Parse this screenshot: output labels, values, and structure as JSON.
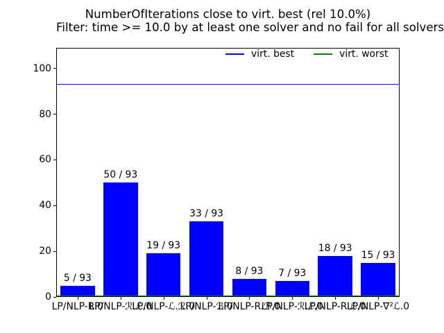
{
  "title": {
    "line1": "NumberOfIterations close to virt. best (rel 10.0%)",
    "line2": "Filter: time >= 10.0 by at least one solver and no fail for all solvers"
  },
  "legend": {
    "items": [
      {
        "label": "virt. best",
        "color": "#0000ff"
      },
      {
        "label": "virt. worst",
        "color": "#008000"
      }
    ],
    "position": "upper right inside plot, horizontal, no frame"
  },
  "chart_data": {
    "type": "bar",
    "title": "NumberOfIterations close to virt. best (rel 10.0%)",
    "subtitle": "Filter: time >= 10.0 by at least one solver and no fail for all solvers",
    "categories": [
      "LP/NLP-R.0",
      "LP/NLP-ℛ.ℒ.0",
      "LP/NLP-ℒ.ℛ.0",
      "LP/NLP-ℬ.0",
      "LP/NLP-R.ℬ.0",
      "LP/NLP-ℛ.ℰ.0",
      "LP/NLP-R.ℒ.0",
      "LP/NLP-∇²ℒ.0"
    ],
    "values": [
      5,
      50,
      19,
      33,
      8,
      7,
      18,
      15
    ],
    "total": 93,
    "bar_labels": [
      "5 / 93",
      "50 / 93",
      "19 / 93",
      "33 / 93",
      "8 / 93",
      "7 / 93",
      "18 / 93",
      "15 / 93"
    ],
    "bar_color": "#0000ff",
    "reference_lines": [
      {
        "name": "virt. best",
        "value": 93,
        "color": "#0000ff"
      },
      {
        "name": "virt. worst",
        "value": 0,
        "color": "#008000"
      }
    ],
    "xlabel": "",
    "ylabel": "",
    "yticks": [
      0,
      20,
      40,
      60,
      80,
      100
    ],
    "ylim": [
      0,
      109
    ],
    "grid": false,
    "legend_position": "upper right, horizontal"
  }
}
